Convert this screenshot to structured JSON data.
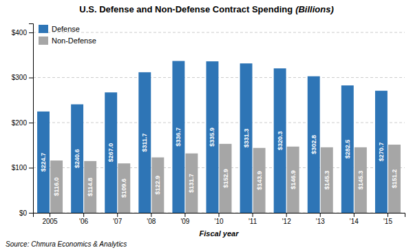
{
  "chart_data": {
    "type": "bar",
    "title": "U.S. Defense and Non-Defense Contract Spending",
    "subtitle": "(Billions)",
    "x_label": "Fiscal year",
    "annotations": [
      "Source: Chmura Economics & Analytics"
    ],
    "categories": [
      "2005",
      "'06",
      "'07",
      "'08",
      "'09",
      "'10",
      "'11",
      "'12",
      "'13",
      "'14",
      "'15"
    ],
    "series": [
      {
        "name": "Defense",
        "color": "#2E75B6",
        "values": [
          224.7,
          240.6,
          267.0,
          311.7,
          336.7,
          335.9,
          331.3,
          320.3,
          302.8,
          282.5,
          270.7
        ],
        "value_labels": [
          "$224.7",
          "$240.6",
          "$267.0",
          "$311.7",
          "$336.7",
          "$335.9",
          "$331.3",
          "$320.3",
          "$302.8",
          "$282.5",
          "$270.7"
        ]
      },
      {
        "name": "Non-Defense",
        "color": "#A6A6A6",
        "values": [
          116.0,
          114.8,
          109.6,
          122.9,
          131.7,
          152.9,
          143.9,
          146.9,
          145.3,
          145.3,
          151.2
        ],
        "value_labels": [
          "$116.0",
          "$114.8",
          "$109.6",
          "$122.9",
          "$131.7",
          "$152.9",
          "$143.9",
          "$146.9",
          "$145.3",
          "$145.3",
          "$151.2"
        ]
      }
    ],
    "ylim": [
      0,
      420
    ],
    "yticks": [
      {
        "value": 0,
        "label": "$0"
      },
      {
        "value": 100,
        "label": "$100"
      },
      {
        "value": 200,
        "label": "$200"
      },
      {
        "value": 300,
        "label": "$300"
      },
      {
        "value": 400,
        "label": "$400"
      }
    ],
    "grid": true,
    "legend": "upper left",
    "data_labels": true
  }
}
